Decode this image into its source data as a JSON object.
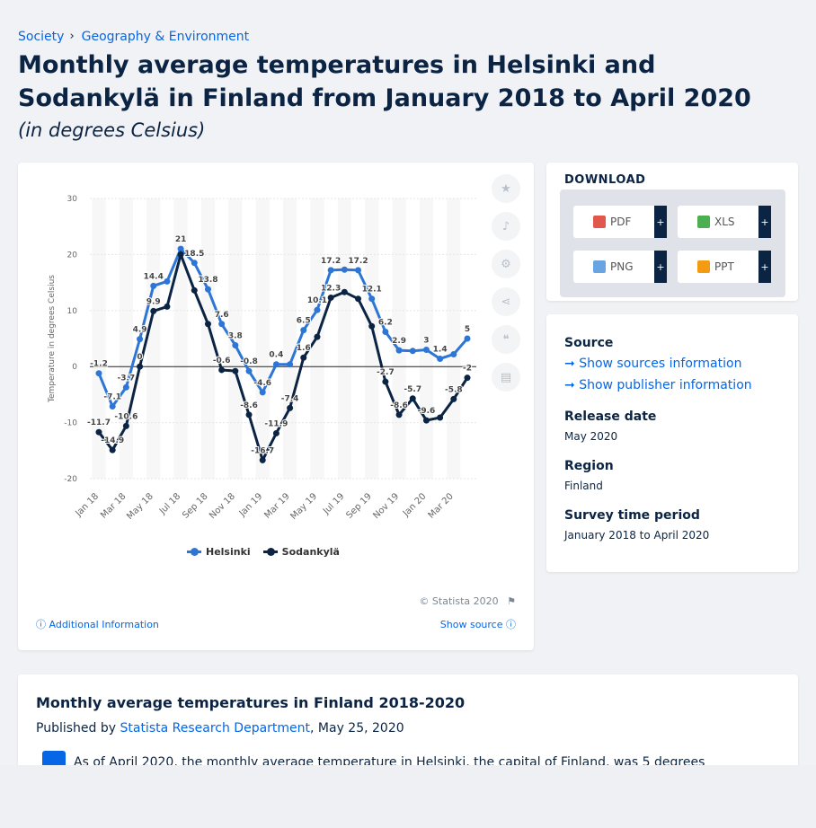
{
  "breadcrumb": [
    "Society",
    "Geography & Environment"
  ],
  "title": "Monthly average temperatures in Helsinki and Sodankylä in Finland from January 2018 to April 2020",
  "subtitle": "(in degrees Celsius)",
  "colors": {
    "helsinki": "#2d76d6",
    "sodankyla": "#0b2444",
    "accent": "#0666e5"
  },
  "chart_data": {
    "type": "line",
    "ylabel": "Temperature in degrees Celsius",
    "xlabel": "",
    "ylim": [
      -20,
      30
    ],
    "yticks": [
      30,
      20,
      10,
      0,
      -10,
      -20
    ],
    "grid": true,
    "legend_position": "bottom",
    "x": [
      "Jan 18",
      "Feb 18",
      "Mar 18",
      "Apr 18",
      "May 18",
      "Jun 18",
      "Jul 18",
      "Aug 18",
      "Sep 18",
      "Oct 18",
      "Nov 18",
      "Dec 18",
      "Jan 19",
      "Feb 19",
      "Mar 19",
      "Apr 19",
      "May 19",
      "Jun 19",
      "Jul 19",
      "Aug 19",
      "Sep 19",
      "Oct 19",
      "Nov 19",
      "Dec 19",
      "Jan 20",
      "Feb 20",
      "Mar 20",
      "Apr 20"
    ],
    "xtick_labels": [
      "Jan 18",
      "Mar 18",
      "May 18",
      "Jul 18",
      "Sep 18",
      "Nov 18",
      "Jan 19",
      "Mar 19",
      "May 19",
      "Jul 19",
      "Sep 19",
      "Nov 19",
      "Jan 20",
      "Mar 20"
    ],
    "series": [
      {
        "name": "Helsinki",
        "values": [
          -1.2,
          -7.1,
          -3.7,
          4.9,
          14.4,
          15.2,
          21,
          18.5,
          13.8,
          7.6,
          3.8,
          -0.8,
          -4.6,
          0.4,
          0.4,
          6.5,
          10.1,
          17.2,
          17.3,
          17.2,
          12.1,
          6.2,
          2.9,
          2.8,
          3,
          1.4,
          2.2,
          5
        ]
      },
      {
        "name": "Sodankylä",
        "values": [
          -11.7,
          -14.9,
          -10.6,
          0,
          9.9,
          10.7,
          20,
          13.6,
          7.6,
          -0.6,
          -0.8,
          -8.6,
          -16.7,
          -11.9,
          -7.4,
          1.6,
          5.3,
          12.3,
          13.3,
          12.1,
          7.2,
          -2.7,
          -8.6,
          -5.7,
          -9.6,
          -9.1,
          -5.8,
          -2
        ]
      }
    ],
    "data_labels": {
      "Helsinki": [
        [
          "0",
          "-1.2"
        ],
        [
          "1",
          "-7.1"
        ],
        [
          "2",
          "-3.7"
        ],
        [
          "3",
          "4.9"
        ],
        [
          "4",
          "14.4"
        ],
        [
          "6",
          "21"
        ],
        [
          "7",
          "18.5"
        ],
        [
          "8",
          "13.8"
        ],
        [
          "9",
          "7.6"
        ],
        [
          "10",
          "3.8"
        ],
        [
          "11",
          "-0.8"
        ],
        [
          "12",
          "-4.6"
        ],
        [
          "13",
          "0.4"
        ],
        [
          "15",
          "6.5"
        ],
        [
          "16",
          "10.1"
        ],
        [
          "17",
          "17.2"
        ],
        [
          "19",
          "17.2"
        ],
        [
          "20",
          "12.1"
        ],
        [
          "21",
          "6.2"
        ],
        [
          "22",
          "2.9"
        ],
        [
          "24",
          "3"
        ],
        [
          "25",
          "1.4"
        ],
        [
          "27",
          "5"
        ]
      ],
      "Sodankylä": [
        [
          "0",
          "-11.7"
        ],
        [
          "1",
          "-14.9"
        ],
        [
          "2",
          "-10.6"
        ],
        [
          "3",
          "0"
        ],
        [
          "4",
          "9.9"
        ],
        [
          "9",
          "-0.6"
        ],
        [
          "11",
          "-8.6"
        ],
        [
          "12",
          "-16.7"
        ],
        [
          "13",
          "-11.9"
        ],
        [
          "14",
          "-7.4"
        ],
        [
          "15",
          "1.6"
        ],
        [
          "17",
          "12.3"
        ],
        [
          "21",
          "-2.7"
        ],
        [
          "22",
          "-8.6"
        ],
        [
          "23",
          "-5.7"
        ],
        [
          "24",
          "-9.6"
        ],
        [
          "26",
          "-5.8"
        ],
        [
          "27",
          "-2"
        ]
      ]
    }
  },
  "chart_footer": {
    "copyright": "© Statista 2020",
    "additional_info": "Additional Information",
    "show_source": "Show source"
  },
  "download": {
    "heading": "DOWNLOAD",
    "buttons": [
      {
        "label": "PDF",
        "icon": "pdf-icon",
        "color": "#e2574c"
      },
      {
        "label": "XLS",
        "icon": "xls-icon",
        "color": "#4caf50"
      },
      {
        "label": "PNG",
        "icon": "png-icon",
        "color": "#6aa5e3"
      },
      {
        "label": "PPT",
        "icon": "ppt-icon",
        "color": "#f39c12"
      }
    ],
    "plus": "+"
  },
  "info": {
    "source_label": "Source",
    "show_sources": "Show sources information",
    "show_publisher": "Show publisher information",
    "release_label": "Release date",
    "release_value": "May 2020",
    "region_label": "Region",
    "region_value": "Finland",
    "survey_label": "Survey time period",
    "survey_value": "January 2018 to April 2020"
  },
  "article": {
    "title": "Monthly average temperatures in Finland 2018-2020",
    "published_prefix": "Published by",
    "publisher": "Statista Research Department",
    "date": ", May 25, 2020",
    "body": "As of April 2020, the monthly average temperature in Helsinki, the capital of Finland, was 5 degrees"
  }
}
